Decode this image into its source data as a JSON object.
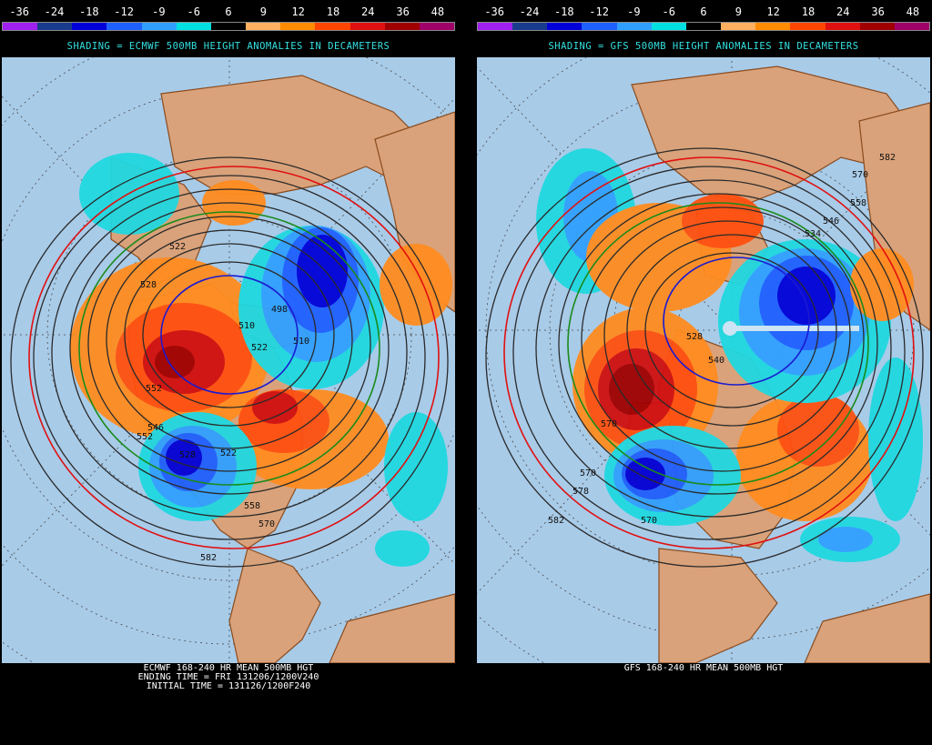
{
  "scale": {
    "labels": [
      "-36",
      "-24",
      "-18",
      "-12",
      "-9",
      "-6",
      "6",
      "9",
      "12",
      "18",
      "24",
      "36",
      "48"
    ],
    "colors": [
      "#a020f0",
      "#1a3c8c",
      "#0000d8",
      "#1e60ff",
      "#30a0ff",
      "#00e0e0",
      "#000000",
      "#ffb060",
      "#ff8c00",
      "#ff4500",
      "#e01010",
      "#a00000",
      "#a0006a"
    ]
  },
  "left": {
    "shading_title": "SHADING = ECMWF 500MB HEIGHT ANOMALIES IN DECAMETERS",
    "footer_lines": [
      "ECMWF 168-240 HR MEAN 500MB HGT",
      "ENDING TIME = FRI 131206/1200V240",
      "INITIAL TIME = 131126/1200F240"
    ],
    "contour_labels": [
      "522",
      "528",
      "498",
      "510",
      "510",
      "522",
      "552",
      "546",
      "552",
      "528",
      "522",
      "558",
      "570",
      "582"
    ]
  },
  "right": {
    "shading_title": "SHADING = GFS 500MB HEIGHT ANOMALIES IN DECAMETERS",
    "footer_lines": [
      "GFS 168-240 HR MEAN 500MB HGT"
    ],
    "contour_labels": [
      "582",
      "570",
      "558",
      "546",
      "534",
      "528",
      "540",
      "570",
      "570",
      "570",
      "578",
      "582"
    ]
  },
  "colors": {
    "ocean": "#a8cbe8",
    "land": "#d9a27a",
    "coast": "#8a4b1e",
    "title_cyan": "#34e0e0"
  }
}
